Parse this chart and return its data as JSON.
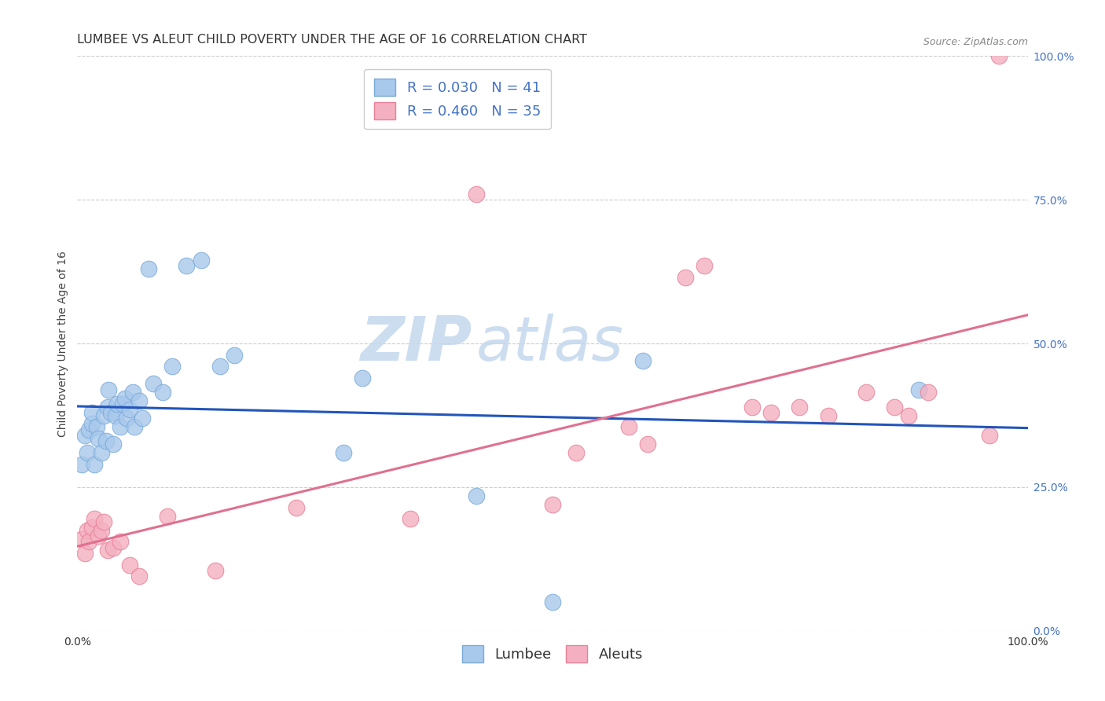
{
  "title": "LUMBEE VS ALEUT CHILD POVERTY UNDER THE AGE OF 16 CORRELATION CHART",
  "source": "Source: ZipAtlas.com",
  "ylabel": "Child Poverty Under the Age of 16",
  "xlim": [
    0,
    1
  ],
  "ylim": [
    0,
    1
  ],
  "ytick_values": [
    0.0,
    0.25,
    0.5,
    0.75,
    1.0
  ],
  "ytick_labels": [
    "0.0%",
    "25.0%",
    "50.0%",
    "75.0%",
    "100.0%"
  ],
  "watermark_zip": "ZIP",
  "watermark_atlas": "atlas",
  "lumbee_color": "#A8C8EC",
  "aleut_color": "#F4B0C0",
  "lumbee_edge": "#7AAAD8",
  "aleut_edge": "#E88098",
  "lumbee_R": 0.03,
  "lumbee_N": 41,
  "aleut_R": 0.46,
  "aleut_N": 35,
  "lumbee_x": [
    0.005,
    0.008,
    0.01,
    0.012,
    0.015,
    0.015,
    0.018,
    0.02,
    0.022,
    0.025,
    0.028,
    0.03,
    0.032,
    0.033,
    0.035,
    0.038,
    0.04,
    0.042,
    0.045,
    0.048,
    0.05,
    0.052,
    0.055,
    0.058,
    0.06,
    0.065,
    0.068,
    0.075,
    0.08,
    0.09,
    0.1,
    0.115,
    0.13,
    0.15,
    0.165,
    0.28,
    0.3,
    0.42,
    0.5,
    0.595,
    0.885
  ],
  "lumbee_y": [
    0.29,
    0.34,
    0.31,
    0.35,
    0.36,
    0.38,
    0.29,
    0.355,
    0.335,
    0.31,
    0.375,
    0.33,
    0.39,
    0.42,
    0.38,
    0.325,
    0.375,
    0.395,
    0.355,
    0.395,
    0.405,
    0.37,
    0.385,
    0.415,
    0.355,
    0.4,
    0.37,
    0.63,
    0.43,
    0.415,
    0.46,
    0.635,
    0.645,
    0.46,
    0.48,
    0.31,
    0.44,
    0.235,
    0.05,
    0.47,
    0.42
  ],
  "aleut_x": [
    0.005,
    0.008,
    0.01,
    0.012,
    0.015,
    0.018,
    0.022,
    0.025,
    0.028,
    0.032,
    0.038,
    0.045,
    0.055,
    0.065,
    0.095,
    0.145,
    0.23,
    0.35,
    0.42,
    0.5,
    0.525,
    0.58,
    0.6,
    0.64,
    0.66,
    0.71,
    0.73,
    0.76,
    0.79,
    0.83,
    0.86,
    0.875,
    0.895,
    0.96,
    0.97
  ],
  "aleut_y": [
    0.16,
    0.135,
    0.175,
    0.155,
    0.18,
    0.195,
    0.165,
    0.175,
    0.19,
    0.14,
    0.145,
    0.155,
    0.115,
    0.095,
    0.2,
    0.105,
    0.215,
    0.195,
    0.76,
    0.22,
    0.31,
    0.355,
    0.325,
    0.615,
    0.635,
    0.39,
    0.38,
    0.39,
    0.375,
    0.415,
    0.39,
    0.375,
    0.415,
    0.34,
    1.0
  ],
  "grid_color": "#CCCCCC",
  "background_color": "#FFFFFF",
  "title_fontsize": 11.5,
  "axis_label_fontsize": 10,
  "tick_fontsize": 10,
  "legend_fontsize": 13,
  "watermark_fontsize_zip": 56,
  "watermark_fontsize_atlas": 56,
  "watermark_color": "#D0E4F7",
  "source_fontsize": 9,
  "right_ytick_color": "#4472C4",
  "blue_line_color": "#2255BB",
  "pink_line_color": "#E07090"
}
